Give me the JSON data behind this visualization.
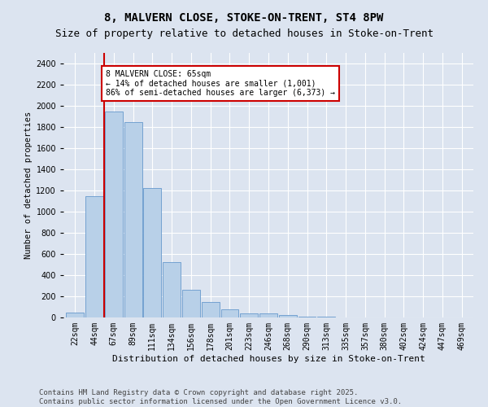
{
  "title": "8, MALVERN CLOSE, STOKE-ON-TRENT, ST4 8PW",
  "subtitle": "Size of property relative to detached houses in Stoke-on-Trent",
  "xlabel": "Distribution of detached houses by size in Stoke-on-Trent",
  "ylabel": "Number of detached properties",
  "categories": [
    "22sqm",
    "44sqm",
    "67sqm",
    "89sqm",
    "111sqm",
    "134sqm",
    "156sqm",
    "178sqm",
    "201sqm",
    "223sqm",
    "246sqm",
    "268sqm",
    "290sqm",
    "313sqm",
    "335sqm",
    "357sqm",
    "380sqm",
    "402sqm",
    "424sqm",
    "447sqm",
    "469sqm"
  ],
  "values": [
    50,
    1150,
    1950,
    1850,
    1220,
    520,
    260,
    150,
    75,
    40,
    35,
    25,
    10,
    5,
    3,
    2,
    1,
    1,
    0,
    0,
    0
  ],
  "bar_color": "#b8d0e8",
  "bar_edge_color": "#6699cc",
  "vline_color": "#cc0000",
  "annotation_text": "8 MALVERN CLOSE: 65sqm\n← 14% of detached houses are smaller (1,001)\n86% of semi-detached houses are larger (6,373) →",
  "annotation_box_color": "#ffffff",
  "annotation_box_edge": "#cc0000",
  "ylim": [
    0,
    2500
  ],
  "yticks": [
    0,
    200,
    400,
    600,
    800,
    1000,
    1200,
    1400,
    1600,
    1800,
    2000,
    2200,
    2400
  ],
  "background_color": "#dce4f0",
  "plot_bg_color": "#dce4f0",
  "footer_line1": "Contains HM Land Registry data © Crown copyright and database right 2025.",
  "footer_line2": "Contains public sector information licensed under the Open Government Licence v3.0.",
  "title_fontsize": 10,
  "subtitle_fontsize": 9,
  "xlabel_fontsize": 8,
  "ylabel_fontsize": 7.5,
  "tick_fontsize": 7,
  "annotation_fontsize": 7,
  "footer_fontsize": 6.5
}
